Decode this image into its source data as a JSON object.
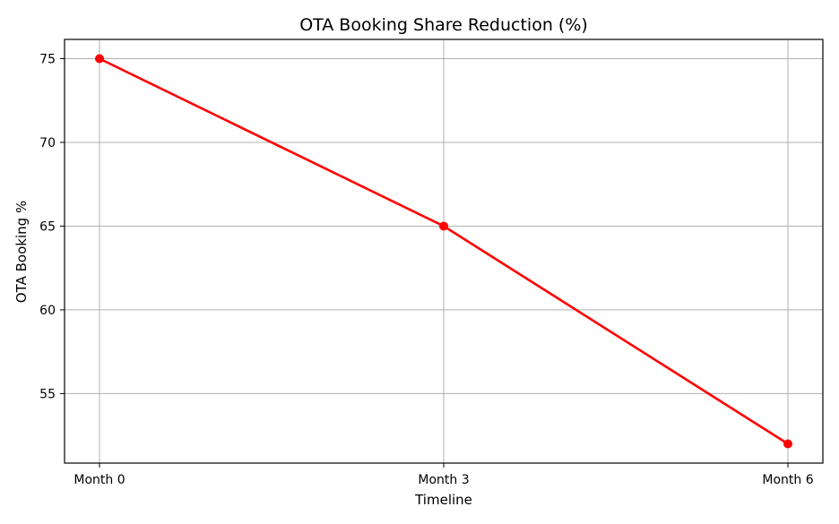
{
  "chart_data": {
    "type": "line",
    "title": "OTA Booking Share Reduction (%)",
    "xlabel": "Timeline",
    "ylabel": "OTA Booking %",
    "categories": [
      "Month 0",
      "Month 3",
      "Month 6"
    ],
    "series": [
      {
        "values": [
          75,
          65,
          52
        ],
        "color": "#ff0000",
        "marker": "circle"
      }
    ],
    "yticks": [
      "55",
      "60",
      "65",
      "70",
      "75"
    ],
    "ylim": [
      50.85,
      76.15
    ],
    "grid": true,
    "legend": "none"
  }
}
